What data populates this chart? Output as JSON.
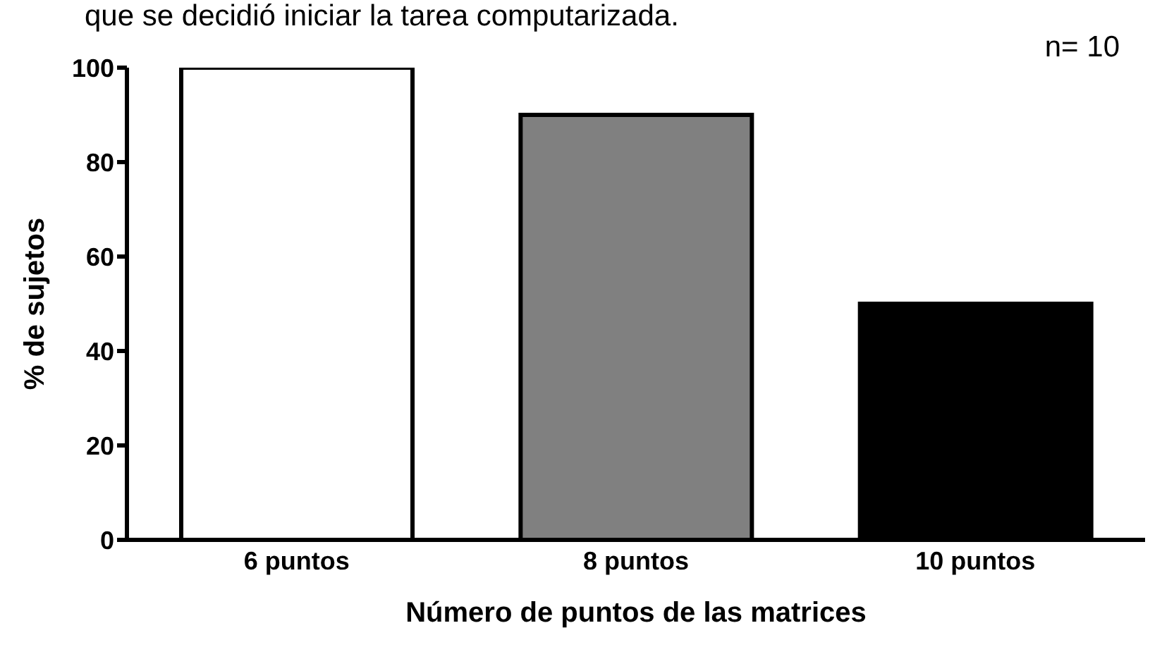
{
  "chart_data": {
    "type": "bar",
    "xlabel": "Número de puntos de las matrices",
    "ylabel": "% de sujetos",
    "categories": [
      "6 puntos",
      "8 puntos",
      "10 puntos"
    ],
    "values": [
      100,
      90,
      50
    ],
    "colors": [
      "#ffffff",
      "#808080",
      "#000000"
    ],
    "ylim": [
      0,
      100
    ],
    "yticks": [
      0,
      20,
      40,
      60,
      80,
      100
    ],
    "grid": false,
    "annotations": [
      "que se decidió iniciar la tarea computarizada.",
      "n= 10"
    ]
  }
}
